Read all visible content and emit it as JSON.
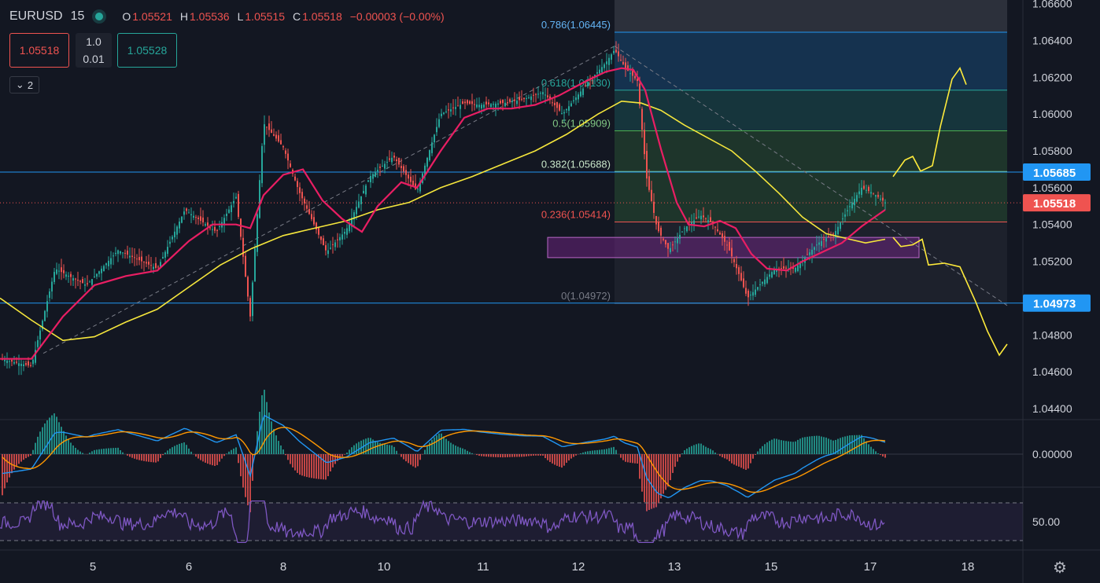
{
  "header": {
    "symbol": "EURUSD",
    "interval": "15",
    "ohlc": [
      {
        "k": "O",
        "v": "1.05521"
      },
      {
        "k": "H",
        "v": "1.05536"
      },
      {
        "k": "L",
        "v": "1.05515"
      },
      {
        "k": "C",
        "v": "1.05518"
      }
    ],
    "change": "−0.00003 (−0.00%)"
  },
  "trade": {
    "sell_price": "1.05518",
    "buy_price": "1.05528",
    "lot_top": "1.0",
    "lot_bottom": "0.01"
  },
  "indicators_toggle": {
    "count": "2"
  },
  "colors": {
    "background": "#131722",
    "up": "#26a69a",
    "down": "#ef5350",
    "ema_fast": "#e91e63",
    "ema_slow": "#f5e63c",
    "blue_line": "#2196f3",
    "rsi": "#7e57c2",
    "macd": "#2196f3",
    "signal": "#ff9800",
    "drawing": "#ffeb3b",
    "rect": "#9c27b0"
  },
  "chart_data": {
    "type": "candlestick",
    "y_axis": {
      "ticks": [
        "1.06600",
        "1.06400",
        "1.06200",
        "1.06000",
        "1.05800",
        "1.05600",
        "1.05400",
        "1.05200",
        "1.04800",
        "1.04600",
        "1.04400"
      ],
      "ylim": [
        1.0434,
        1.0662
      ]
    },
    "x_axis": {
      "ticks": [
        "5",
        "6",
        "8",
        "10",
        "11",
        "12",
        "13",
        "15",
        "17",
        "18"
      ]
    },
    "last_price": {
      "label": "1.05518",
      "value": 1.05518
    },
    "horizontal_lines": [
      {
        "label": "1.05685",
        "value": 1.05685
      },
      {
        "label": "1.04973",
        "value": 1.04973
      }
    ],
    "fibonacci": {
      "levels": [
        {
          "label": "0.786(1.06445)",
          "value": 1.06445
        },
        {
          "label": "0.618(1.06130)",
          "value": 1.0613
        },
        {
          "label": "0.5(1.05909)",
          "value": 1.05909
        },
        {
          "label": "0.382(1.05688)",
          "value": 1.05688
        },
        {
          "label": "0.236(1.05414)",
          "value": 1.05414
        },
        {
          "label": "0(1.04972)",
          "value": 1.04972
        }
      ],
      "top_value": 1.0662
    },
    "zone": {
      "from": 1.0522,
      "to": 1.0533
    },
    "series": [
      {
        "kind": "price",
        "points": [
          [
            0,
            1.0467
          ],
          [
            40,
            1.0463
          ],
          [
            70,
            1.0516
          ],
          [
            110,
            1.0507
          ],
          [
            150,
            1.0526
          ],
          [
            200,
            1.0516
          ],
          [
            235,
            1.0548
          ],
          [
            275,
            1.0536
          ],
          [
            300,
            1.0555
          ],
          [
            318,
            1.049
          ],
          [
            335,
            1.0595
          ],
          [
            360,
            1.0582
          ],
          [
            380,
            1.0558
          ],
          [
            415,
            1.0525
          ],
          [
            440,
            1.0537
          ],
          [
            470,
            1.0566
          ],
          [
            500,
            1.0577
          ],
          [
            530,
            1.0558
          ],
          [
            560,
            1.06
          ],
          [
            590,
            1.0606
          ],
          [
            610,
            1.0605
          ],
          [
            640,
            1.0606
          ],
          [
            665,
            1.0608
          ],
          [
            690,
            1.0612
          ],
          [
            715,
            1.06
          ],
          [
            745,
            1.0616
          ],
          [
            770,
            1.0628
          ],
          [
            781,
            1.0635
          ],
          [
            795,
            1.0625
          ],
          [
            810,
            1.0618
          ],
          [
            822,
            1.0565
          ],
          [
            835,
            1.0538
          ],
          [
            850,
            1.0526
          ],
          [
            870,
            1.0538
          ],
          [
            890,
            1.0545
          ],
          [
            905,
            1.0541
          ],
          [
            925,
            1.0528
          ],
          [
            940,
            1.0512
          ],
          [
            950,
            1.05
          ],
          [
            965,
            1.0507
          ],
          [
            985,
            1.0516
          ],
          [
            1010,
            1.0516
          ],
          [
            1040,
            1.053
          ],
          [
            1060,
            1.0535
          ],
          [
            1080,
            1.055
          ],
          [
            1095,
            1.056
          ],
          [
            1110,
            1.0557
          ],
          [
            1125,
            1.0552
          ]
        ]
      },
      {
        "kind": "ema_fast",
        "points": [
          [
            0,
            1.0467
          ],
          [
            40,
            1.0467
          ],
          [
            80,
            1.049
          ],
          [
            120,
            1.0507
          ],
          [
            160,
            1.0512
          ],
          [
            200,
            1.0515
          ],
          [
            240,
            1.0531
          ],
          [
            270,
            1.054
          ],
          [
            300,
            1.054
          ],
          [
            318,
            1.0538
          ],
          [
            335,
            1.0556
          ],
          [
            360,
            1.0567
          ],
          [
            385,
            1.057
          ],
          [
            410,
            1.0553
          ],
          [
            435,
            1.0543
          ],
          [
            460,
            1.0536
          ],
          [
            480,
            1.055
          ],
          [
            510,
            1.0563
          ],
          [
            530,
            1.056
          ],
          [
            560,
            1.058
          ],
          [
            590,
            1.0598
          ],
          [
            620,
            1.0603
          ],
          [
            650,
            1.0603
          ],
          [
            680,
            1.0605
          ],
          [
            710,
            1.061
          ],
          [
            745,
            1.0618
          ],
          [
            770,
            1.0623
          ],
          [
            790,
            1.0625
          ],
          [
            805,
            1.0624
          ],
          [
            820,
            1.0613
          ],
          [
            840,
            1.0581
          ],
          [
            860,
            1.0552
          ],
          [
            875,
            1.054
          ],
          [
            895,
            1.0539
          ],
          [
            915,
            1.0542
          ],
          [
            935,
            1.0538
          ],
          [
            955,
            1.0524
          ],
          [
            975,
            1.0516
          ],
          [
            1000,
            1.0515
          ],
          [
            1020,
            1.052
          ],
          [
            1045,
            1.0525
          ],
          [
            1070,
            1.053
          ],
          [
            1095,
            1.0539
          ],
          [
            1125,
            1.0548
          ]
        ]
      },
      {
        "kind": "ema_slow",
        "points": [
          [
            0,
            1.05
          ],
          [
            40,
            1.0488
          ],
          [
            80,
            1.0477
          ],
          [
            120,
            1.0479
          ],
          [
            160,
            1.0487
          ],
          [
            200,
            1.0494
          ],
          [
            240,
            1.0506
          ],
          [
            280,
            1.0518
          ],
          [
            320,
            1.0527
          ],
          [
            360,
            1.0534
          ],
          [
            400,
            1.0538
          ],
          [
            440,
            1.0542
          ],
          [
            480,
            1.0548
          ],
          [
            520,
            1.0552
          ],
          [
            560,
            1.056
          ],
          [
            600,
            1.0566
          ],
          [
            640,
            1.0573
          ],
          [
            680,
            1.058
          ],
          [
            720,
            1.0589
          ],
          [
            760,
            1.06
          ],
          [
            790,
            1.0607
          ],
          [
            815,
            1.0606
          ],
          [
            840,
            1.0602
          ],
          [
            870,
            1.0594
          ],
          [
            900,
            1.0587
          ],
          [
            930,
            1.058
          ],
          [
            960,
            1.0569
          ],
          [
            990,
            1.0557
          ],
          [
            1020,
            1.0544
          ],
          [
            1050,
            1.0535
          ],
          [
            1080,
            1.0532
          ],
          [
            1100,
            1.053
          ],
          [
            1125,
            1.0532
          ]
        ]
      },
      {
        "kind": "projection",
        "points": [
          [
            1135,
            1.0566
          ],
          [
            1150,
            1.0575
          ],
          [
            1160,
            1.0577
          ],
          [
            1170,
            1.0569
          ],
          [
            1185,
            1.0572
          ],
          [
            1195,
            1.0593
          ],
          [
            1210,
            1.0619
          ],
          [
            1220,
            1.0625
          ],
          [
            1228,
            1.0616
          ]
        ]
      },
      {
        "kind": "projection",
        "points": [
          [
            1135,
            1.0533
          ],
          [
            1145,
            1.0528
          ],
          [
            1160,
            1.0529
          ],
          [
            1172,
            1.0532
          ],
          [
            1180,
            1.0518
          ],
          [
            1200,
            1.0519
          ],
          [
            1220,
            1.0517
          ],
          [
            1240,
            1.0498
          ],
          [
            1255,
            1.0482
          ],
          [
            1270,
            1.0469
          ],
          [
            1280,
            1.0475
          ]
        ]
      },
      {
        "kind": "trendline_up",
        "points": [
          [
            55,
            1.047
          ],
          [
            781,
            1.0637
          ]
        ]
      },
      {
        "kind": "trendline_down",
        "points": [
          [
            781,
            1.0637
          ],
          [
            1280,
            1.0496
          ]
        ]
      }
    ],
    "macd": {
      "ticks": [
        "0.00000"
      ],
      "ylim": [
        -0.0006,
        0.0006
      ]
    },
    "rsi": {
      "ticks": [
        "50.00"
      ],
      "upper": 70,
      "lower": 30,
      "ylim": [
        20,
        85
      ]
    }
  }
}
